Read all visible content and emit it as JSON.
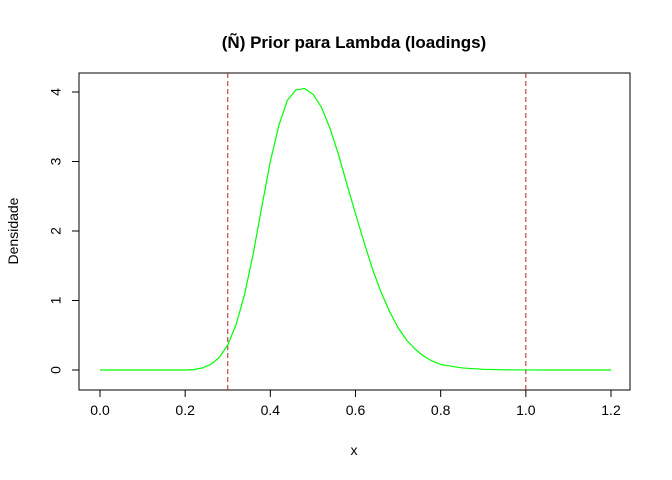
{
  "chart_data": {
    "type": "line",
    "title": "(Ñ) Prior para Lambda (loadings)",
    "xlabel": "x",
    "ylabel": "Densidade",
    "xlim": [
      0,
      1.2
    ],
    "ylim": [
      0,
      4
    ],
    "x_ticks": [
      "0.0",
      "0.2",
      "0.4",
      "0.6",
      "0.8",
      "1.0",
      "1.2"
    ],
    "y_ticks": [
      "0",
      "1",
      "2",
      "3",
      "4"
    ],
    "grid": false,
    "legend": "none",
    "series": [
      {
        "color": "#00ff00",
        "x": [
          0,
          0.05,
          0.1,
          0.15,
          0.2,
          0.22,
          0.24,
          0.26,
          0.28,
          0.3,
          0.32,
          0.34,
          0.36,
          0.38,
          0.4,
          0.42,
          0.44,
          0.46,
          0.48,
          0.5,
          0.52,
          0.54,
          0.56,
          0.58,
          0.6,
          0.62,
          0.64,
          0.66,
          0.68,
          0.7,
          0.72,
          0.74,
          0.76,
          0.78,
          0.8,
          0.85,
          0.9,
          0.95,
          1.0,
          1.05,
          1.1,
          1.15,
          1.2
        ],
        "y": [
          0,
          0,
          0,
          0,
          0,
          0.005,
          0.03,
          0.08,
          0.18,
          0.36,
          0.66,
          1.1,
          1.68,
          2.35,
          3.0,
          3.52,
          3.88,
          4.03,
          4.05,
          3.97,
          3.78,
          3.48,
          3.1,
          2.67,
          2.25,
          1.84,
          1.45,
          1.12,
          0.84,
          0.61,
          0.43,
          0.3,
          0.2,
          0.13,
          0.08,
          0.03,
          0.01,
          0.003,
          0.001,
          0,
          0,
          0,
          0
        ]
      }
    ],
    "reference_lines": [
      {
        "axis": "x",
        "value": 0.3,
        "color": "#b22222",
        "style": "dashed"
      },
      {
        "axis": "x",
        "value": 1.0,
        "color": "#b22222",
        "style": "dashed"
      }
    ]
  }
}
